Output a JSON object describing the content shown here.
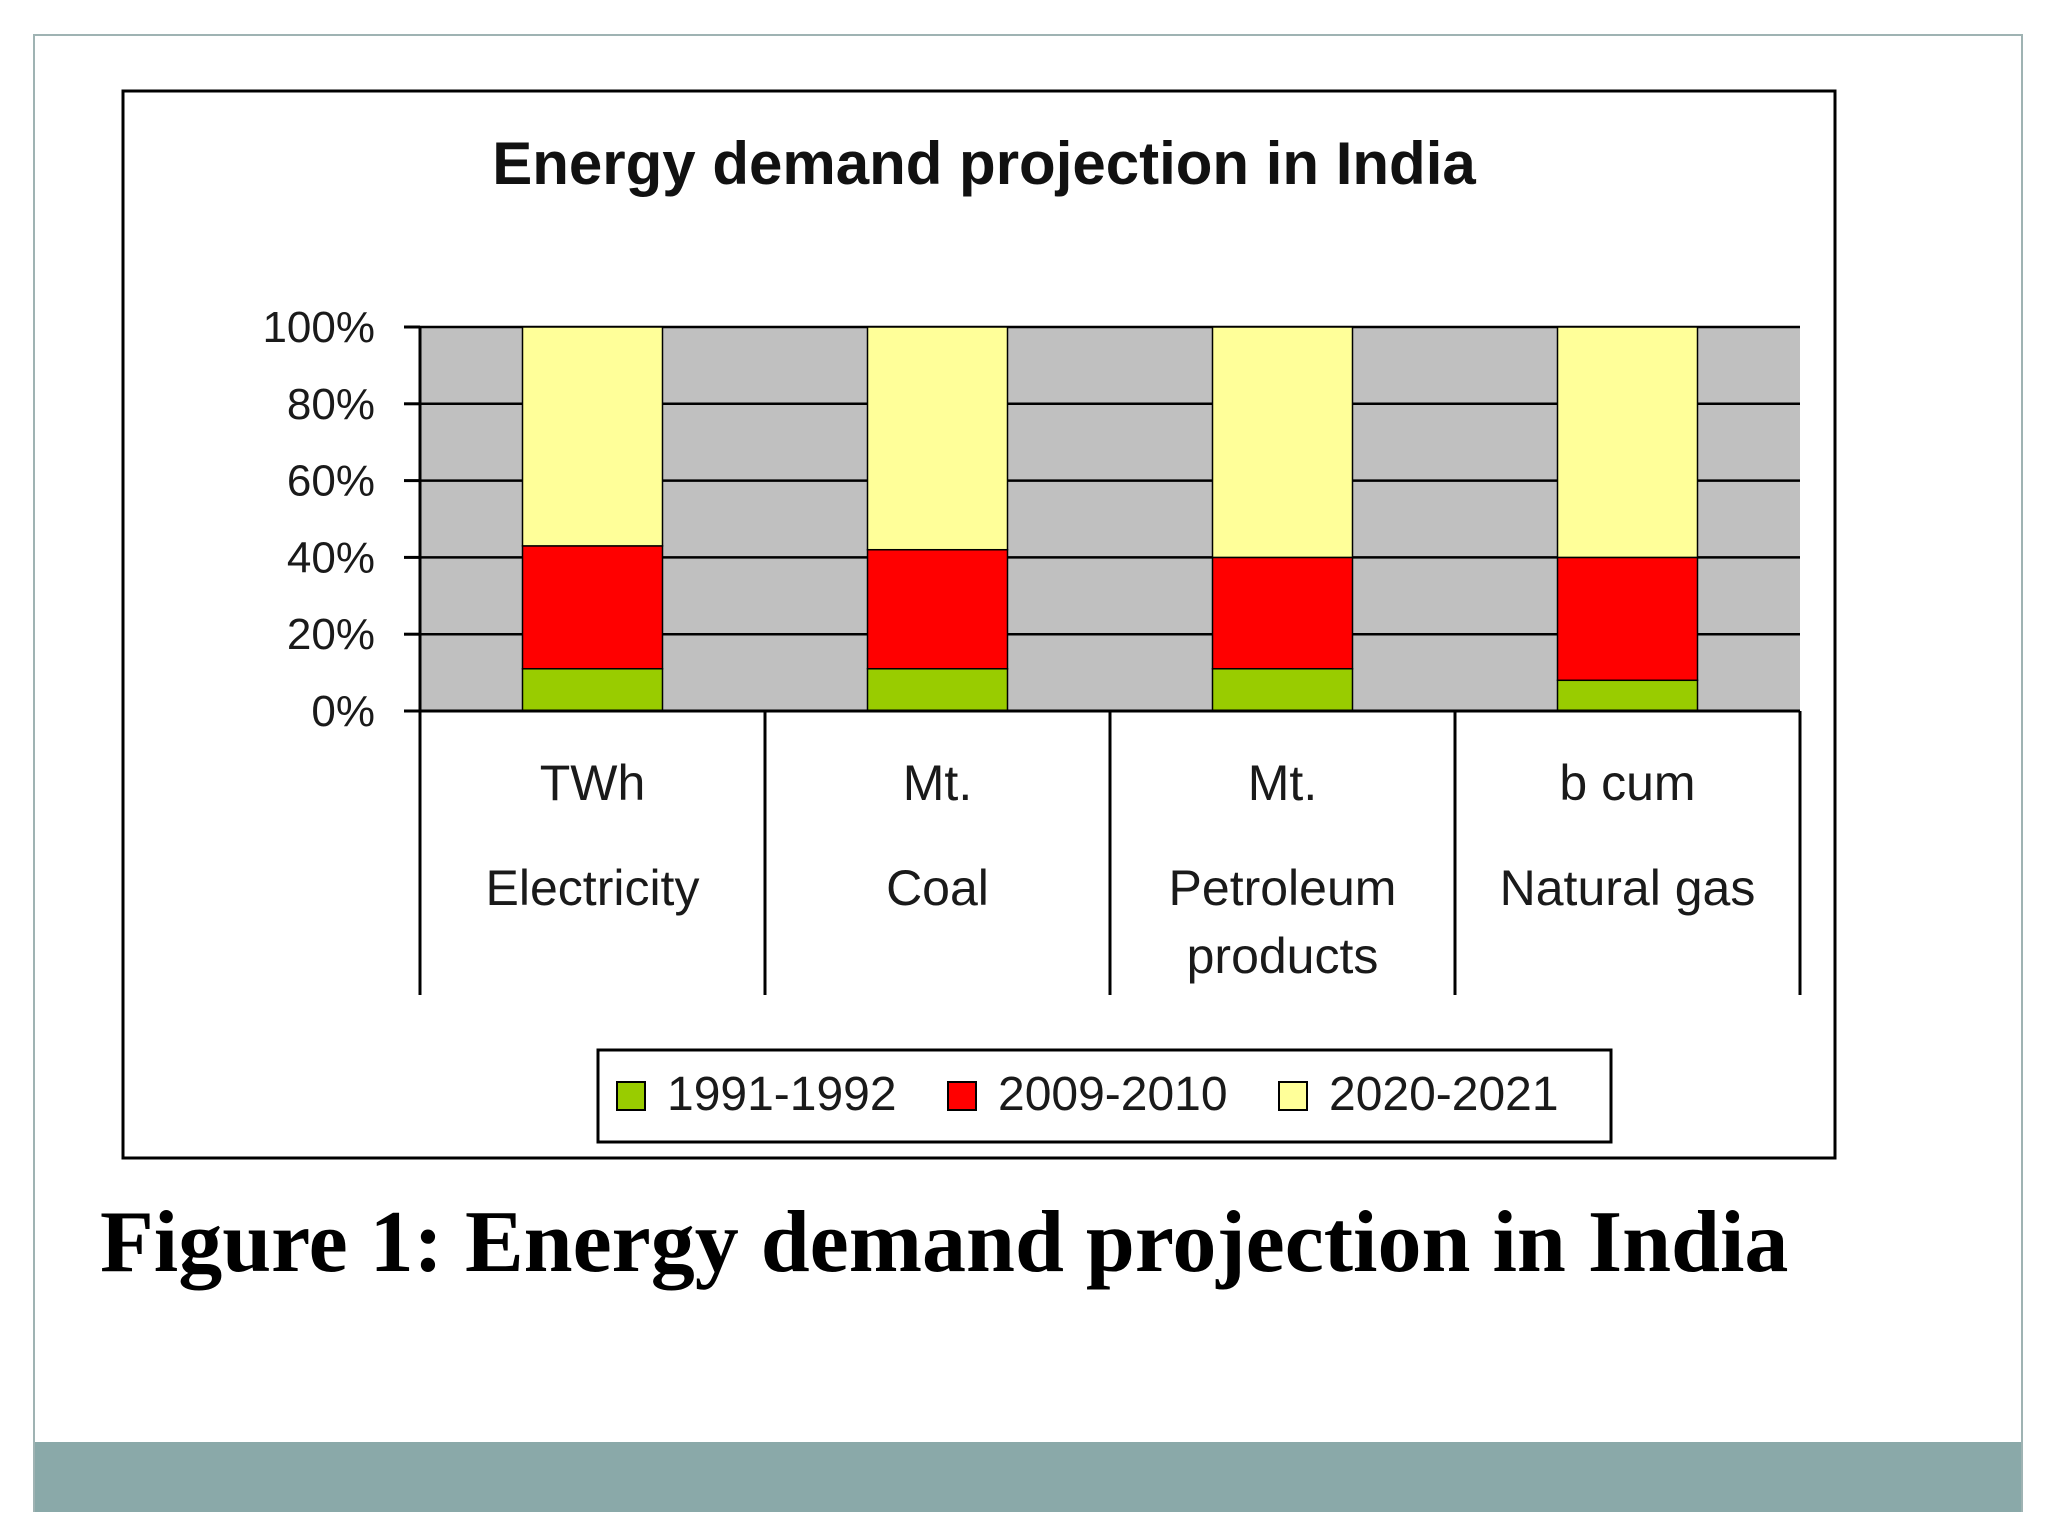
{
  "caption": "Figure 1: Energy demand projection in India",
  "colors": {
    "plot_background": "#c0c0c0",
    "series": [
      "#99cc00",
      "#ff0000",
      "#ffff99"
    ],
    "footer_band": "#8aa9a9"
  },
  "chart_data": {
    "type": "bar",
    "stacked": "percent",
    "title": "Energy demand projection in India",
    "categories": [
      "Electricity",
      "Coal",
      "Petroleum products",
      "Natural gas"
    ],
    "category_units": [
      "TWh",
      "Mt.",
      "Mt.",
      "b cum"
    ],
    "category_lines": [
      [
        "Electricity"
      ],
      [
        "Coal"
      ],
      [
        "Petroleum",
        "products"
      ],
      [
        "Natural gas"
      ]
    ],
    "series": [
      {
        "name": "1991-1992",
        "values": [
          11,
          11,
          11,
          8
        ]
      },
      {
        "name": "2009-2010",
        "values": [
          32,
          31,
          29,
          32
        ]
      },
      {
        "name": "2020-2021",
        "values": [
          57,
          58,
          60,
          60
        ]
      }
    ],
    "ylim": [
      0,
      100
    ],
    "yticks": [
      "0%",
      "20%",
      "40%",
      "60%",
      "80%",
      "100%"
    ],
    "grid": true,
    "legend": "bottom"
  }
}
